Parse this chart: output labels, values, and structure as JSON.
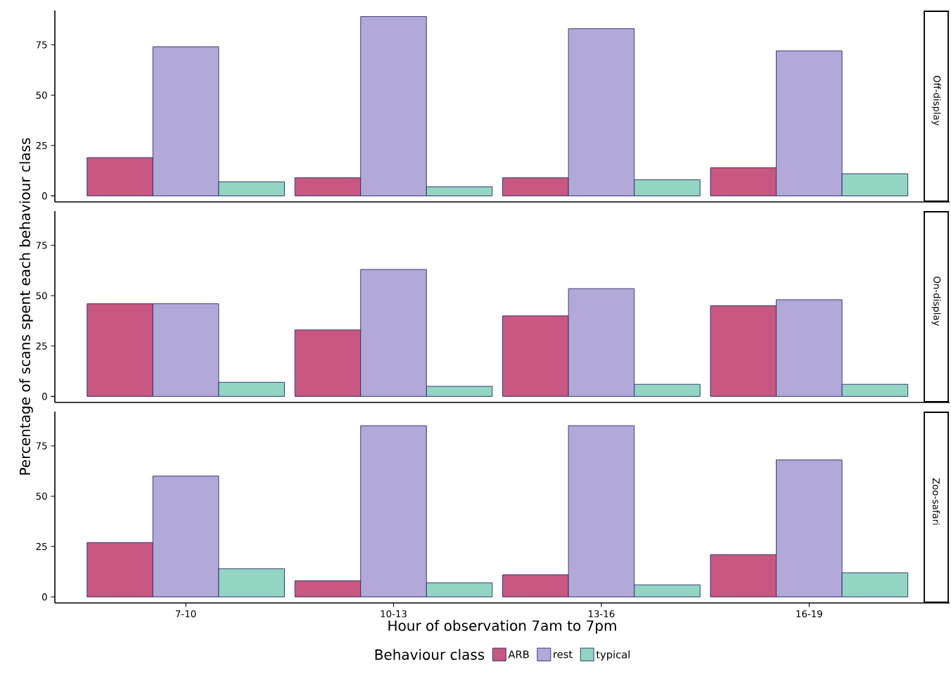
{
  "chart_data": [
    {
      "type": "bar",
      "title": "Off-display",
      "categories": [
        null,
        null,
        null,
        null
      ],
      "series": [
        {
          "color": "#c8587f",
          "values": [
            19,
            9,
            9,
            14
          ]
        },
        {
          "color": "#b3a9d9",
          "values": [
            74,
            89,
            83,
            72
          ]
        },
        {
          "color": "#92d5c3",
          "values": [
            7,
            4.5,
            8,
            11
          ]
        }
      ],
      "ylim": [
        -3,
        92
      ],
      "yticks": [
        0,
        25,
        50,
        75
      ],
      "tick_labels": "y"
    },
    {
      "type": "bar",
      "title": "On-display",
      "ylabel": "Percentage of scans spent each behaviour class",
      "categories": [
        null,
        null,
        null,
        null
      ],
      "series": [
        {
          "color": "#c8587f",
          "values": [
            46,
            33,
            40,
            45
          ]
        },
        {
          "color": "#b3a9d9",
          "values": [
            46,
            63,
            53.5,
            48
          ]
        },
        {
          "color": "#92d5c3",
          "values": [
            7,
            5,
            6,
            6
          ]
        }
      ],
      "ylim": [
        -3,
        92
      ],
      "yticks": [
        0,
        25,
        50,
        75
      ],
      "tick_labels": "y"
    },
    {
      "type": "bar",
      "title": "Zoo-safari",
      "xlabel": "Hour of observation 7am to 7pm",
      "legend_title": "Behaviour class",
      "legend": "bottom",
      "categories": [
        "7-10",
        "10-13",
        "13-16",
        "16-19"
      ],
      "series": [
        {
          "name": "ARB",
          "color": "#c8587f",
          "values": [
            27,
            8,
            11,
            21
          ]
        },
        {
          "name": "rest",
          "color": "#b3a9d9",
          "values": [
            60,
            85,
            85,
            68
          ]
        },
        {
          "name": "typical",
          "color": "#92d5c3",
          "values": [
            14,
            7,
            6,
            12
          ]
        }
      ],
      "ylim": [
        -3,
        92
      ],
      "yticks": [
        0,
        25,
        50,
        75
      ]
    }
  ]
}
